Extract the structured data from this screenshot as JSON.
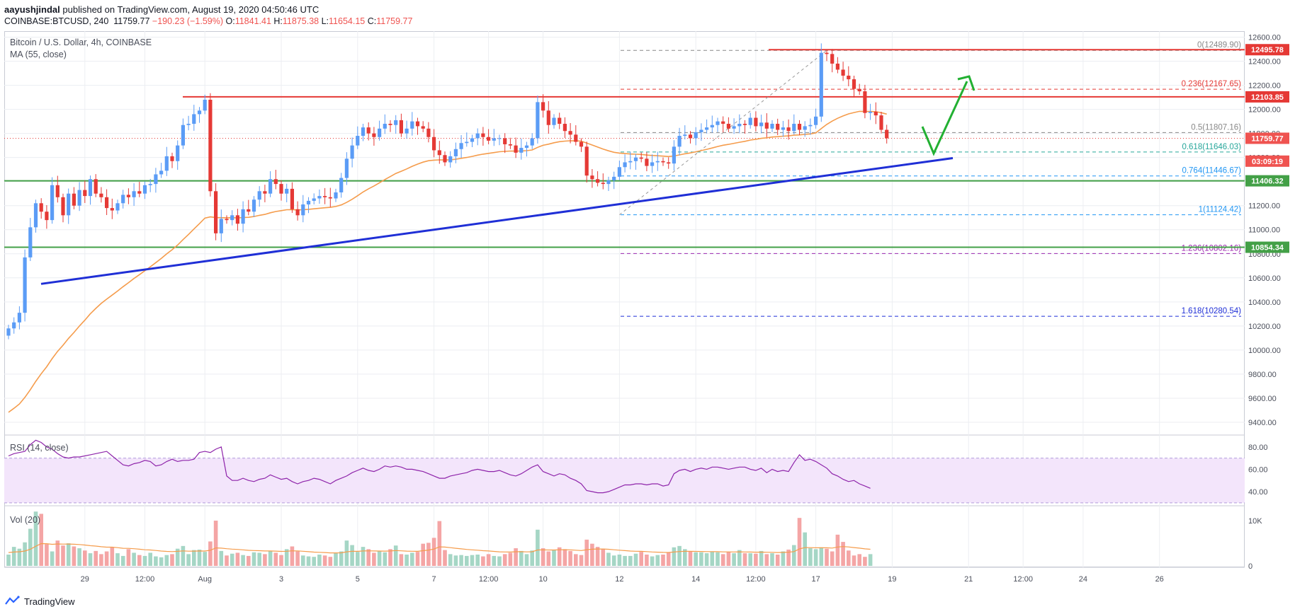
{
  "header": {
    "author": "aayushjindal",
    "published": "published on TradingView.com, August 19, 2020 04:50:46 UTC",
    "symbol": "COINBASE:BTCUSD, 240",
    "last": "11759.77",
    "change": "−190.23 (−1.59%)",
    "o_label": "O:",
    "o": "11841.41",
    "h_label": "H:",
    "h": "11875.38",
    "l_label": "L:",
    "l": "11654.15",
    "c_label": "C:",
    "c": "11759.77"
  },
  "legend": {
    "title": "Bitcoin / U.S. Dollar, 4h, COINBASE",
    "ma": "MA (55, close)",
    "rsi": "RSI (14, close)",
    "vol": "Vol (20)"
  },
  "footer": {
    "brand": "TradingView"
  },
  "colors": {
    "up": "#5b9cf6",
    "down": "#e53935",
    "ma": "#f59c4c",
    "trend": "#1f2fd6",
    "support": "#43a047",
    "resistance": "#e53935",
    "arrow": "#22b032"
  },
  "chart_data": {
    "type": "candlestick",
    "price_ticks": [
      "12600.00",
      "12400.00",
      "12200.00",
      "12000.00",
      "11800.00",
      "11600.00",
      "11400.00",
      "11200.00",
      "11000.00",
      "10800.00",
      "10600.00",
      "10400.00",
      "10200.00",
      "10000.00",
      "9800.00",
      "9600.00",
      "9400.00"
    ],
    "price_ylim": [
      9300,
      12650
    ],
    "x_ticks": [
      {
        "label": "29",
        "idx": 14
      },
      {
        "label": "12:00",
        "idx": 25
      },
      {
        "label": "Aug",
        "idx": 36
      },
      {
        "label": "3",
        "idx": 50
      },
      {
        "label": "5",
        "idx": 64
      },
      {
        "label": "7",
        "idx": 78
      },
      {
        "label": "12:00",
        "idx": 88
      },
      {
        "label": "10",
        "idx": 98
      },
      {
        "label": "12",
        "idx": 112
      },
      {
        "label": "14",
        "idx": 126
      },
      {
        "label": "12:00",
        "idx": 137
      },
      {
        "label": "17",
        "idx": 148
      },
      {
        "label": "19",
        "idx": 162
      },
      {
        "label": "21",
        "idx": 176
      },
      {
        "label": "12:00",
        "idx": 186
      },
      {
        "label": "24",
        "idx": 197
      },
      {
        "label": "26",
        "idx": 211
      }
    ],
    "x_count": 224,
    "closes": [
      10180,
      10230,
      10310,
      10770,
      11020,
      11220,
      11150,
      11080,
      11370,
      11270,
      11120,
      11300,
      11200,
      11330,
      11280,
      11420,
      11300,
      11270,
      11180,
      11160,
      11220,
      11290,
      11270,
      11320,
      11300,
      11370,
      11380,
      11460,
      11490,
      11610,
      11570,
      11700,
      11870,
      11880,
      11960,
      11990,
      12080,
      11320,
      10970,
      11090,
      11080,
      11120,
      11050,
      11170,
      11150,
      11250,
      11320,
      11300,
      11420,
      11380,
      11300,
      11340,
      11170,
      11120,
      11210,
      11240,
      11260,
      11280,
      11270,
      11260,
      11310,
      11430,
      11590,
      11700,
      11780,
      11850,
      11800,
      11770,
      11840,
      11880,
      11870,
      11910,
      11800,
      11840,
      11900,
      11860,
      11840,
      11770,
      11660,
      11620,
      11560,
      11610,
      11670,
      11720,
      11730,
      11760,
      11800,
      11770,
      11740,
      11760,
      11760,
      11710,
      11700,
      11640,
      11680,
      11700,
      11760,
      12060,
      11990,
      11870,
      11930,
      11880,
      11820,
      11790,
      11730,
      11690,
      11450,
      11420,
      11390,
      11380,
      11410,
      11440,
      11520,
      11560,
      11570,
      11600,
      11590,
      11530,
      11560,
      11570,
      11560,
      11550,
      11690,
      11780,
      11790,
      11760,
      11810,
      11830,
      11850,
      11870,
      11900,
      11880,
      11840,
      11860,
      11880,
      11870,
      11930,
      11860,
      11890,
      11840,
      11880,
      11830,
      11850,
      11820,
      11880,
      11830,
      11860,
      11870,
      11940,
      12470,
      12460,
      12380,
      12330,
      12280,
      12250,
      12170,
      12150,
      11970,
      11980,
      11950,
      11830,
      11760
    ],
    "ma55_start": 9450,
    "annotations": {
      "support_levels": [
        "11406.32",
        "10854.34"
      ],
      "resistance_levels": [
        "12495.78",
        "12103.85"
      ],
      "current_price": "11759.77",
      "countdown": "03:09:19",
      "fib_levels": [
        {
          "label": "0(12489.90)",
          "value": 12489.9,
          "color": "#888888"
        },
        {
          "label": "0.236(12167.65)",
          "value": 12167.65,
          "color": "#e53935"
        },
        {
          "label": "0.5(11807.16)",
          "value": 11807.16,
          "color": "#888888"
        },
        {
          "label": "0.618(11646.03)",
          "value": 11646.03,
          "color": "#26a69a"
        },
        {
          "label": "0.764(11446.67)",
          "value": 11446.67,
          "color": "#2196f3"
        },
        {
          "label": "1(11124.42)",
          "value": 11124.42,
          "color": "#2196f3"
        },
        {
          "label": "1.236(10802.16)",
          "value": 10802.16,
          "color": "#9c27b0"
        },
        {
          "label": "1.618(10280.54)",
          "value": 10280.54,
          "color": "#1f2fd6"
        }
      ]
    },
    "rsi": {
      "ticks": [
        "80.00",
        "60.00",
        "40.00"
      ],
      "ylim": [
        28,
        90
      ],
      "upper": 70,
      "lower": 30,
      "values": [
        72,
        74,
        75,
        76,
        82,
        86,
        84,
        80,
        78,
        74,
        71,
        70,
        71,
        71,
        72,
        73,
        74,
        75,
        76,
        72,
        68,
        64,
        63,
        65,
        66,
        68,
        67,
        63,
        64,
        67,
        69,
        67,
        68,
        68,
        69,
        75,
        76,
        75,
        78,
        80,
        54,
        50,
        50,
        52,
        50,
        49,
        51,
        52,
        55,
        53,
        51,
        52,
        49,
        47,
        49,
        50,
        52,
        51,
        49,
        47,
        50,
        52,
        54,
        57,
        59,
        61,
        59,
        58,
        60,
        63,
        62,
        63,
        62,
        60,
        60,
        59,
        58,
        56,
        54,
        52,
        52,
        54,
        55,
        56,
        57,
        59,
        60,
        59,
        58,
        58,
        59,
        57,
        55,
        54,
        56,
        59,
        62,
        64,
        58,
        56,
        54,
        56,
        55,
        52,
        50,
        47,
        41,
        40,
        39,
        39,
        40,
        42,
        44,
        46,
        46,
        47,
        47,
        46,
        47,
        47,
        45,
        46,
        56,
        59,
        60,
        58,
        60,
        61,
        60,
        62,
        62,
        61,
        60,
        61,
        62,
        62,
        60,
        59,
        61,
        57,
        60,
        58,
        59,
        58,
        66,
        73,
        68,
        69,
        67,
        64,
        61,
        56,
        54,
        51,
        49,
        50,
        47,
        45,
        43
      ],
      "x_offset": 0
    },
    "volume": {
      "ticks": [
        "10K",
        "0"
      ],
      "ymax": 12500,
      "values": [
        2500,
        4200,
        3800,
        5200,
        8200,
        12000,
        11500,
        4800,
        3200,
        5600,
        4500,
        5000,
        4300,
        3900,
        3400,
        2800,
        3300,
        2600,
        3200,
        4100,
        2800,
        2200,
        3700,
        2900,
        2400,
        2200,
        2900,
        2100,
        1900,
        2400,
        2600,
        3800,
        4400,
        2600,
        3500,
        3600,
        3100,
        5400,
        10000,
        3300,
        2300,
        2700,
        2900,
        2400,
        2200,
        3000,
        2900,
        2600,
        3300,
        2900,
        2400,
        3700,
        4300,
        3200,
        2300,
        2100,
        2000,
        2500,
        2300,
        2000,
        2800,
        3200,
        5600,
        4600,
        3100,
        4200,
        3700,
        2900,
        3200,
        3000,
        3700,
        4500,
        2600,
        2500,
        2900,
        3100,
        4900,
        5100,
        6200,
        9900,
        3500,
        2600,
        2300,
        2400,
        2200,
        2400,
        2500,
        2100,
        2600,
        2200,
        2100,
        2600,
        2900,
        3900,
        3300,
        2600,
        3400,
        8000,
        3900,
        3200,
        3500,
        4100,
        3700,
        3300,
        2600,
        2400,
        5800,
        4900,
        4200,
        3800,
        2900,
        2300,
        2500,
        2200,
        2200,
        2700,
        3100,
        2500,
        2100,
        2400,
        2500,
        2900,
        4100,
        4400,
        3700,
        3200,
        3000,
        3000,
        2800,
        3200,
        3000,
        2600,
        3100,
        2800,
        3500,
        2800,
        2800,
        2700,
        3300,
        2600,
        2800,
        2500,
        3200,
        3600,
        4600,
        10600,
        7400,
        3900,
        3700,
        4100,
        3800,
        3200,
        6900,
        5300,
        3400,
        2300,
        2600,
        2000,
        2600
      ],
      "ma_start": 3000
    }
  }
}
